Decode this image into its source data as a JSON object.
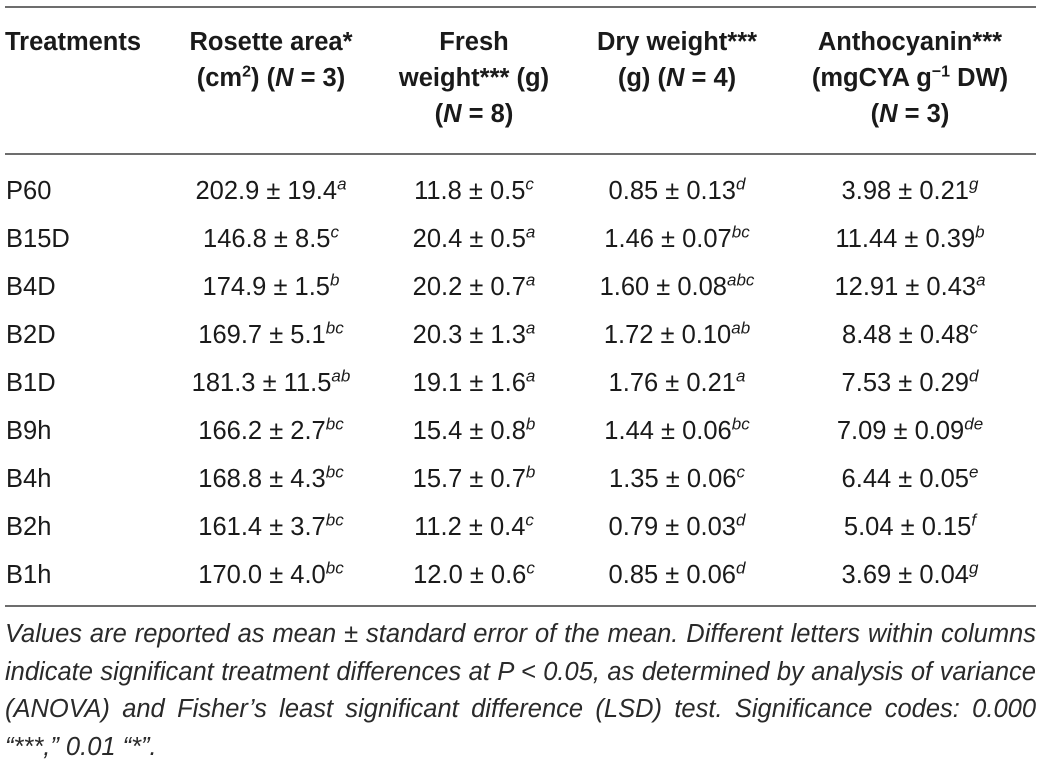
{
  "header": {
    "treatments": "Treatments",
    "rosette_l1": "Rosette area*",
    "rosette_l2_pre": "(cm",
    "rosette_l2_sup": "2",
    "rosette_l2_mid": ") (",
    "rosette_l2_n": "N",
    "rosette_l2_post": " = 3)",
    "fresh_l1": "Fresh",
    "fresh_l2": "weight*** (g)",
    "fresh_l3_pre": "(",
    "fresh_l3_n": "N",
    "fresh_l3_post": " = 8)",
    "dry_l1": "Dry weight***",
    "dry_l2_pre": "(g) (",
    "dry_l2_n": "N",
    "dry_l2_post": " = 4)",
    "antho_l1": "Anthocyanin***",
    "antho_l2_pre": "(mgCYA g",
    "antho_l2_sup": "−1",
    "antho_l2_post": " DW)",
    "antho_l3_pre": "(",
    "antho_l3_n": "N",
    "antho_l3_post": " = 3)"
  },
  "rows": [
    {
      "treatment": "P60",
      "rosette": "202.9 ± 19.4",
      "rosette_sig": "a",
      "fresh": "11.8 ± 0.5",
      "fresh_sig": "c",
      "dry": "0.85 ± 0.13",
      "dry_sig": "d",
      "antho": "3.98 ± 0.21",
      "antho_sig": "g"
    },
    {
      "treatment": "B15D",
      "rosette": "146.8 ± 8.5",
      "rosette_sig": "c",
      "fresh": "20.4 ± 0.5",
      "fresh_sig": "a",
      "dry": "1.46 ± 0.07",
      "dry_sig": "bc",
      "antho": "11.44 ± 0.39",
      "antho_sig": "b"
    },
    {
      "treatment": "B4D",
      "rosette": "174.9 ± 1.5",
      "rosette_sig": "b",
      "fresh": "20.2 ± 0.7",
      "fresh_sig": "a",
      "dry": "1.60 ± 0.08",
      "dry_sig": "abc",
      "antho": "12.91 ± 0.43",
      "antho_sig": "a"
    },
    {
      "treatment": "B2D",
      "rosette": "169.7 ± 5.1",
      "rosette_sig": "bc",
      "fresh": "20.3 ± 1.3",
      "fresh_sig": "a",
      "dry": "1.72 ± 0.10",
      "dry_sig": "ab",
      "antho": "8.48 ± 0.48",
      "antho_sig": "c"
    },
    {
      "treatment": "B1D",
      "rosette": "181.3 ± 11.5",
      "rosette_sig": "ab",
      "fresh": "19.1 ± 1.6",
      "fresh_sig": "a",
      "dry": "1.76 ± 0.21",
      "dry_sig": "a",
      "antho": "7.53 ± 0.29",
      "antho_sig": "d"
    },
    {
      "treatment": "B9h",
      "rosette": "166.2 ± 2.7",
      "rosette_sig": "bc",
      "fresh": "15.4 ± 0.8",
      "fresh_sig": "b",
      "dry": "1.44 ± 0.06",
      "dry_sig": "bc",
      "antho": "7.09 ± 0.09",
      "antho_sig": "de"
    },
    {
      "treatment": "B4h",
      "rosette": "168.8 ± 4.3",
      "rosette_sig": "bc",
      "fresh": "15.7 ± 0.7",
      "fresh_sig": "b",
      "dry": "1.35 ± 0.06",
      "dry_sig": "c",
      "antho": "6.44 ± 0.05",
      "antho_sig": "e"
    },
    {
      "treatment": "B2h",
      "rosette": "161.4 ± 3.7",
      "rosette_sig": "bc",
      "fresh": "11.2 ± 0.4",
      "fresh_sig": "c",
      "dry": "0.79 ± 0.03",
      "dry_sig": "d",
      "antho": "5.04 ± 0.15",
      "antho_sig": "f"
    },
    {
      "treatment": "B1h",
      "rosette": "170.0 ± 4.0",
      "rosette_sig": "bc",
      "fresh": "12.0 ± 0.6",
      "fresh_sig": "c",
      "dry": "0.85 ± 0.06",
      "dry_sig": "d",
      "antho": "3.69 ± 0.04",
      "antho_sig": "g"
    }
  ],
  "footnote": "Values are reported as mean ± standard error of the mean. Different letters within columns indicate significant treatment differences at P < 0.05, as determined by analysis of variance (ANOVA) and Fisher’s least significant difference (LSD) test. Significance codes: 0.000 “***,” 0.01 “*”."
}
